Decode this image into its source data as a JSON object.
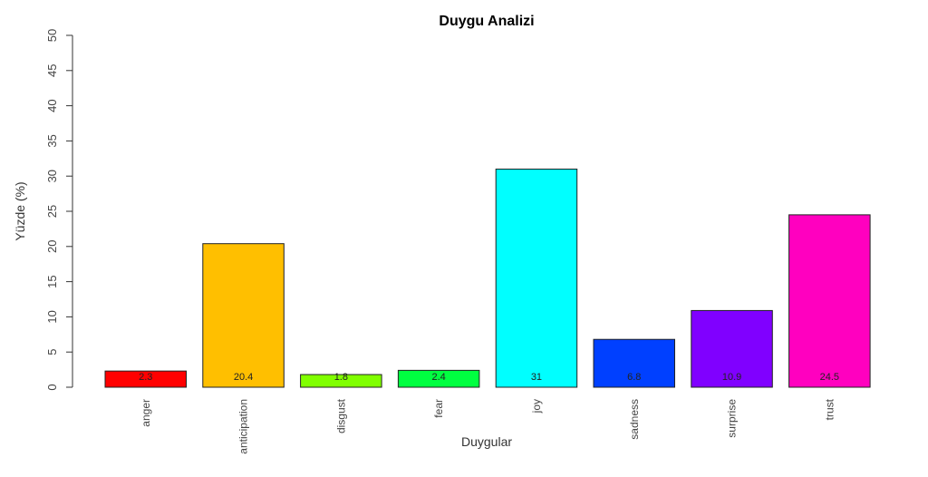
{
  "chart_data": {
    "type": "bar",
    "title": "Duygu Analizi",
    "xlabel": "Duygular",
    "ylabel": "Yüzde (%)",
    "ylim": [
      0,
      50
    ],
    "yticks": [
      0,
      5,
      10,
      15,
      20,
      25,
      30,
      35,
      40,
      45,
      50
    ],
    "categories": [
      "anger",
      "anticipation",
      "disgust",
      "fear",
      "joy",
      "sadness",
      "surprise",
      "trust"
    ],
    "values": [
      2.3,
      20.4,
      1.8,
      2.4,
      31,
      6.8,
      10.9,
      24.5
    ],
    "value_labels": [
      "2.3",
      "20.4",
      "1.8",
      "2.4",
      "31",
      "6.8",
      "10.9",
      "24.5"
    ],
    "colors": [
      "#ff0000",
      "#ffbf00",
      "#80ff00",
      "#00ff40",
      "#00ffff",
      "#0040ff",
      "#8000ff",
      "#ff00bf"
    ],
    "grid": false,
    "legend": "none"
  }
}
